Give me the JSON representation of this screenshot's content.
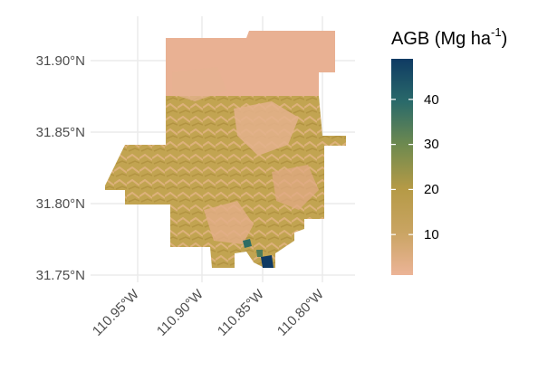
{
  "map": {
    "latitude_labels": [
      "31.90°N",
      "31.85°N",
      "31.80°N",
      "31.75°N"
    ],
    "longitude_labels": [
      "110.95°W",
      "110.90°W",
      "110.85°W",
      "110.80°W"
    ],
    "grid": true
  },
  "legend": {
    "title_main": "AGB (Mg ha",
    "title_sup": "-1",
    "title_close": ")",
    "ticks": [
      "40",
      "30",
      "20",
      "10"
    ],
    "range": [
      1,
      49
    ],
    "tick_values": [
      40,
      30,
      20,
      10
    ]
  },
  "colors": {
    "low": "#ecb497",
    "mid_low": "#c9a462",
    "mid": "#b59a46",
    "mid_high": "#4f7c5a",
    "high": "#0f3a63",
    "grid": "#ebebeb",
    "text": "#4d4d4d"
  }
}
